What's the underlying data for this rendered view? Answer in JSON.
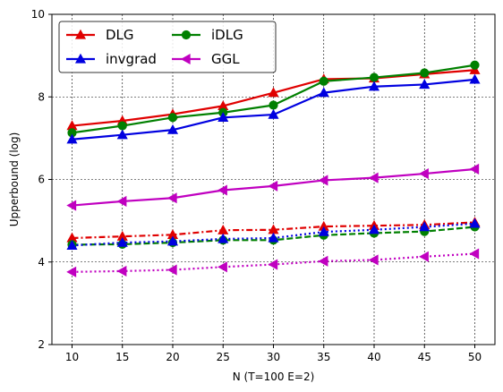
{
  "chart_data": {
    "type": "line",
    "xlabel": "N (T=100 E=2)",
    "ylabel": "Upperbound (log)",
    "xlim": [
      8,
      52
    ],
    "ylim": [
      2,
      10
    ],
    "x": [
      10,
      15,
      20,
      25,
      30,
      35,
      40,
      45,
      50
    ],
    "xticks": [
      10,
      15,
      20,
      25,
      30,
      35,
      40,
      45,
      50
    ],
    "yticks": [
      2,
      4,
      6,
      8,
      10
    ],
    "grid": true,
    "grid_style": "dashed",
    "legend_placement": "top-left",
    "legend_columns": 2,
    "series": [
      {
        "name": "DLG",
        "color": "#e00000",
        "marker": "triangle-up",
        "linestyle": "solid",
        "values": [
          7.3,
          7.42,
          7.58,
          7.78,
          8.1,
          8.43,
          8.45,
          8.55,
          8.65
        ]
      },
      {
        "name": "iDLG",
        "color": "#008000",
        "marker": "circle",
        "linestyle": "solid",
        "values": [
          7.13,
          7.3,
          7.5,
          7.62,
          7.8,
          8.38,
          8.47,
          8.58,
          8.77
        ]
      },
      {
        "name": "invgrad",
        "color": "#0000e0",
        "marker": "triangle-up",
        "linestyle": "solid",
        "values": [
          6.97,
          7.08,
          7.2,
          7.5,
          7.57,
          8.1,
          8.25,
          8.3,
          8.42
        ]
      },
      {
        "name": "GGL",
        "color": "#c000c0",
        "marker": "triangle-left",
        "linestyle": "solid",
        "values": [
          5.37,
          5.47,
          5.55,
          5.74,
          5.84,
          5.98,
          6.04,
          6.14,
          6.25
        ]
      },
      {
        "name": "",
        "color": "#e00000",
        "marker": "triangle-up",
        "linestyle": "dashdot",
        "values": [
          4.58,
          4.62,
          4.66,
          4.77,
          4.78,
          4.86,
          4.88,
          4.9,
          4.96
        ]
      },
      {
        "name": "",
        "color": "#008000",
        "marker": "circle",
        "linestyle": "dashed",
        "values": [
          4.42,
          4.43,
          4.47,
          4.53,
          4.53,
          4.65,
          4.7,
          4.74,
          4.85
        ]
      },
      {
        "name": "",
        "color": "#0000e0",
        "marker": "triangle-up",
        "linestyle": "dotted",
        "values": [
          4.4,
          4.47,
          4.5,
          4.56,
          4.58,
          4.73,
          4.78,
          4.85,
          4.93
        ]
      },
      {
        "name": "",
        "color": "#c000c0",
        "marker": "triangle-left",
        "linestyle": "dotted",
        "values": [
          3.76,
          3.78,
          3.81,
          3.88,
          3.94,
          4.02,
          4.05,
          4.13,
          4.2
        ]
      }
    ]
  }
}
